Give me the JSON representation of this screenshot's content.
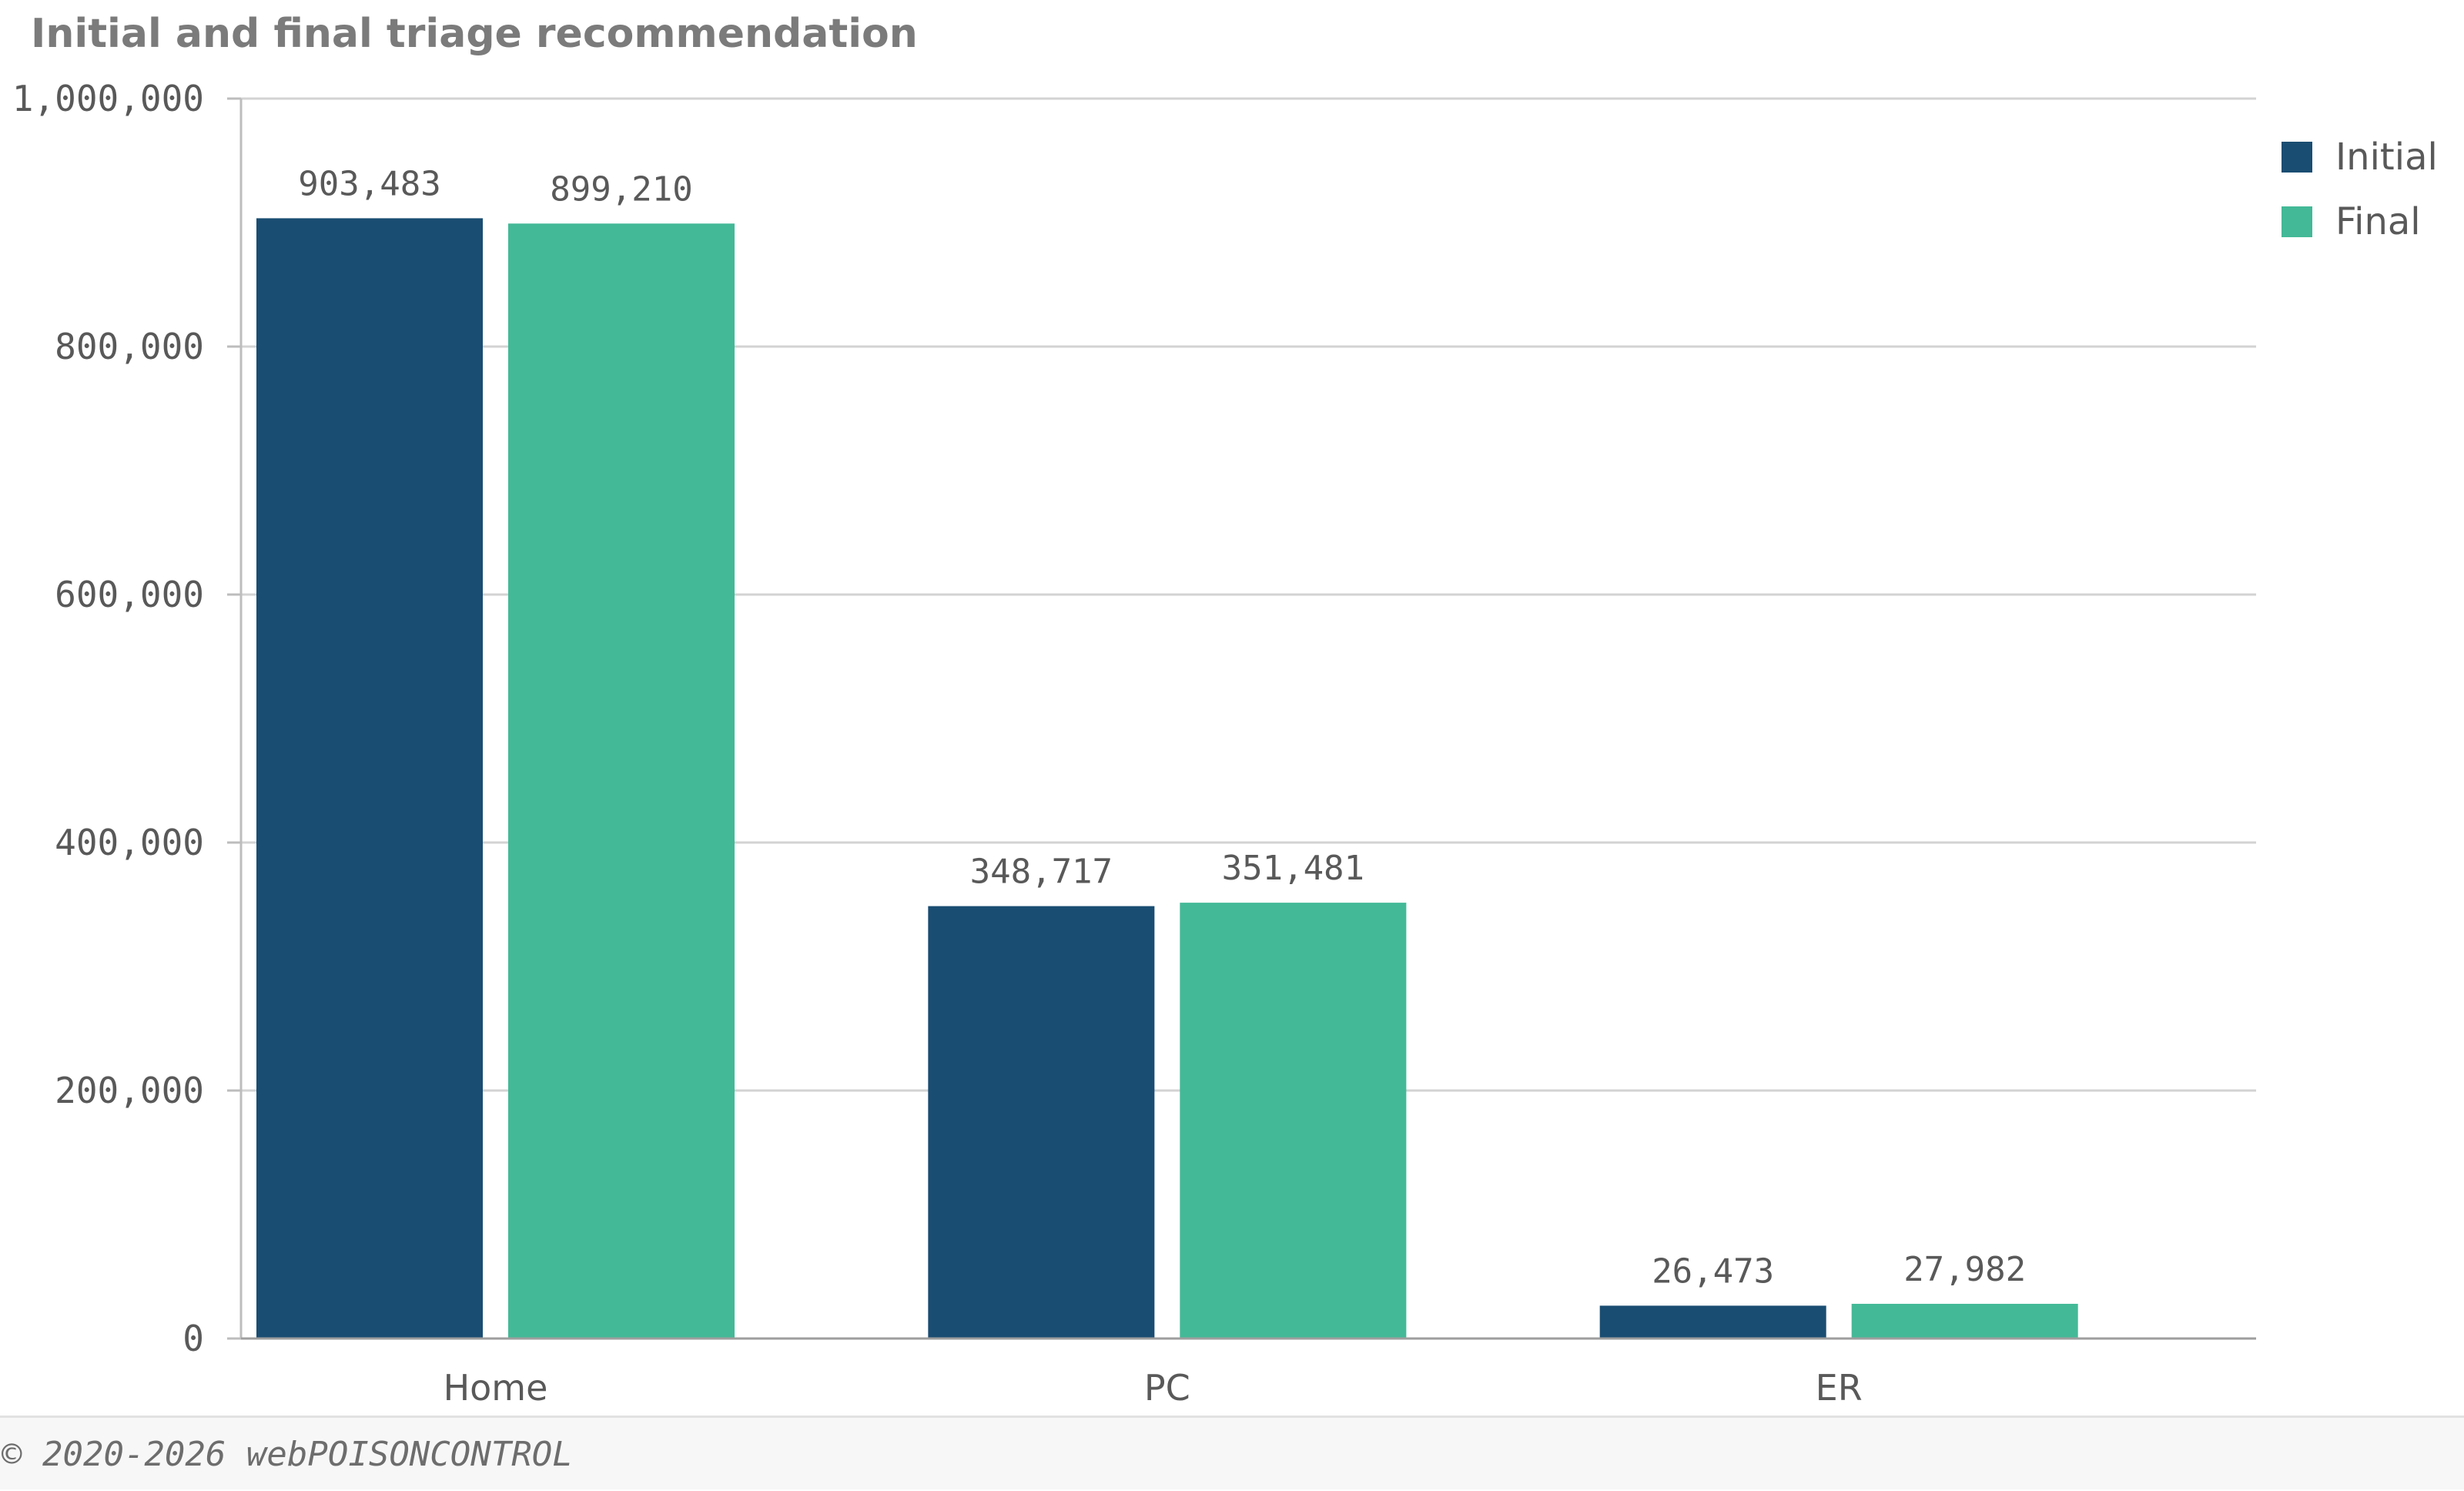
{
  "chart_data": {
    "type": "bar",
    "title": "Initial and final triage recommendation",
    "categories": [
      "Home",
      "PC",
      "ER"
    ],
    "series": [
      {
        "name": "Initial",
        "color": "#1a4d72",
        "values": [
          903483,
          348717,
          26473
        ],
        "labels": [
          "903,483",
          "348,717",
          "26,473"
        ]
      },
      {
        "name": "Final",
        "color": "#43b997",
        "values": [
          899210,
          351481,
          27982
        ],
        "labels": [
          "899,210",
          "351,481",
          "27,982"
        ]
      }
    ],
    "ylim": [
      0,
      1000000
    ],
    "yticks": [
      0,
      200000,
      400000,
      600000,
      800000,
      1000000
    ],
    "ytick_labels": [
      "0",
      "200,000",
      "400,000",
      "600,000",
      "800,000",
      "1,000,000"
    ],
    "xlabel": "",
    "ylabel": "",
    "grid": true,
    "legend_position": "top-right"
  },
  "footer": {
    "text": "© 2020-2026 webPOISONCONTROL"
  }
}
